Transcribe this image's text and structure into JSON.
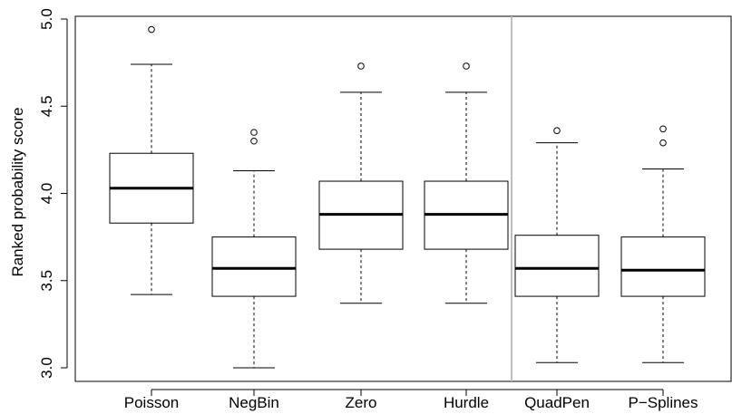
{
  "chart_data": {
    "type": "boxplot",
    "title": "",
    "xlabel": "",
    "ylabel": "Ranked probability score",
    "ylim": [
      2.94,
      5.0
    ],
    "yticks": [
      3.0,
      3.5,
      4.0,
      4.5,
      5.0
    ],
    "ytick_labels": [
      "3.0",
      "3.5",
      "4.0",
      "4.5",
      "5.0"
    ],
    "categories": [
      "Poisson",
      "NegBin",
      "Zero",
      "Hurdle",
      "QuadPen",
      "P−Splines"
    ],
    "boxes": [
      {
        "min": 3.42,
        "q1": 3.83,
        "median": 4.03,
        "q3": 4.23,
        "max": 4.74,
        "outliers": [
          4.94
        ]
      },
      {
        "min": 3.0,
        "q1": 3.41,
        "median": 3.57,
        "q3": 3.75,
        "max": 4.13,
        "outliers": [
          4.3,
          4.35
        ]
      },
      {
        "min": 3.37,
        "q1": 3.68,
        "median": 3.88,
        "q3": 4.07,
        "max": 4.58,
        "outliers": [
          4.73
        ]
      },
      {
        "min": 3.37,
        "q1": 3.68,
        "median": 3.88,
        "q3": 4.07,
        "max": 4.58,
        "outliers": [
          4.73
        ]
      },
      {
        "min": 3.03,
        "q1": 3.41,
        "median": 3.57,
        "q3": 3.76,
        "max": 4.29,
        "outliers": [
          4.36
        ]
      },
      {
        "min": 3.03,
        "q1": 3.41,
        "median": 3.56,
        "q3": 3.75,
        "max": 4.14,
        "outliers": [
          4.29,
          4.37
        ]
      }
    ],
    "separator_after_index": 3,
    "separator_color": "#bebebe",
    "grid": false,
    "legend": "none"
  }
}
